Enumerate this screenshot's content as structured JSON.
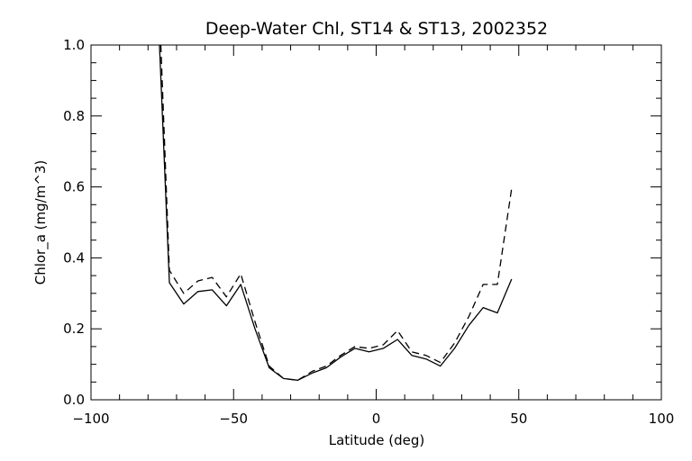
{
  "chart_data": {
    "type": "line",
    "title": "Deep-Water Chl, ST14 & ST13, 2002352",
    "xlabel": "Latitude (deg)",
    "ylabel": "Chlor_a (mg/m^3)",
    "xlim": [
      -100,
      100
    ],
    "ylim": [
      0.0,
      1.0
    ],
    "x_ticks": [
      -100,
      -50,
      0,
      50,
      100
    ],
    "x_tick_labels": [
      "−100",
      "−50",
      "0",
      "50",
      "100"
    ],
    "y_ticks": [
      0.0,
      0.2,
      0.4,
      0.6,
      0.8,
      1.0
    ],
    "y_tick_labels": [
      "0.0",
      "0.2",
      "0.4",
      "0.6",
      "0.8",
      "1.0"
    ],
    "grid": false,
    "legend": "none",
    "series": [
      {
        "style": "solid",
        "color": "#000000",
        "x": [
          -76,
          -72.5,
          -67.5,
          -62.5,
          -57.5,
          -52.5,
          -47.5,
          -42.5,
          -37.5,
          -32.5,
          -27.5,
          -22.5,
          -17.5,
          -12.5,
          -7.5,
          -2.5,
          2.5,
          7.5,
          12.5,
          17.5,
          22.5,
          27.5,
          32.5,
          37.5,
          42.5,
          47.5
        ],
        "y": [
          1.0,
          0.33,
          0.27,
          0.305,
          0.31,
          0.265,
          0.325,
          0.2,
          0.09,
          0.06,
          0.055,
          0.075,
          0.09,
          0.12,
          0.145,
          0.135,
          0.145,
          0.17,
          0.125,
          0.115,
          0.095,
          0.145,
          0.21,
          0.26,
          0.245,
          0.34
        ]
      },
      {
        "style": "dashed",
        "color": "#000000",
        "x": [
          -75.5,
          -72.5,
          -67.5,
          -62.5,
          -57.5,
          -52.5,
          -47.5,
          -42.5,
          -37.5,
          -32.5,
          -27.5,
          -22.5,
          -17.5,
          -12.5,
          -7.5,
          -2.5,
          2.5,
          7.5,
          12.5,
          17.5,
          22.5,
          27.5,
          32.5,
          37.5,
          42.5,
          47.5
        ],
        "y": [
          1.0,
          0.365,
          0.3,
          0.335,
          0.345,
          0.29,
          0.355,
          0.22,
          0.095,
          0.06,
          0.055,
          0.08,
          0.095,
          0.125,
          0.15,
          0.145,
          0.155,
          0.195,
          0.135,
          0.125,
          0.105,
          0.16,
          0.235,
          0.325,
          0.325,
          0.595
        ]
      }
    ]
  }
}
